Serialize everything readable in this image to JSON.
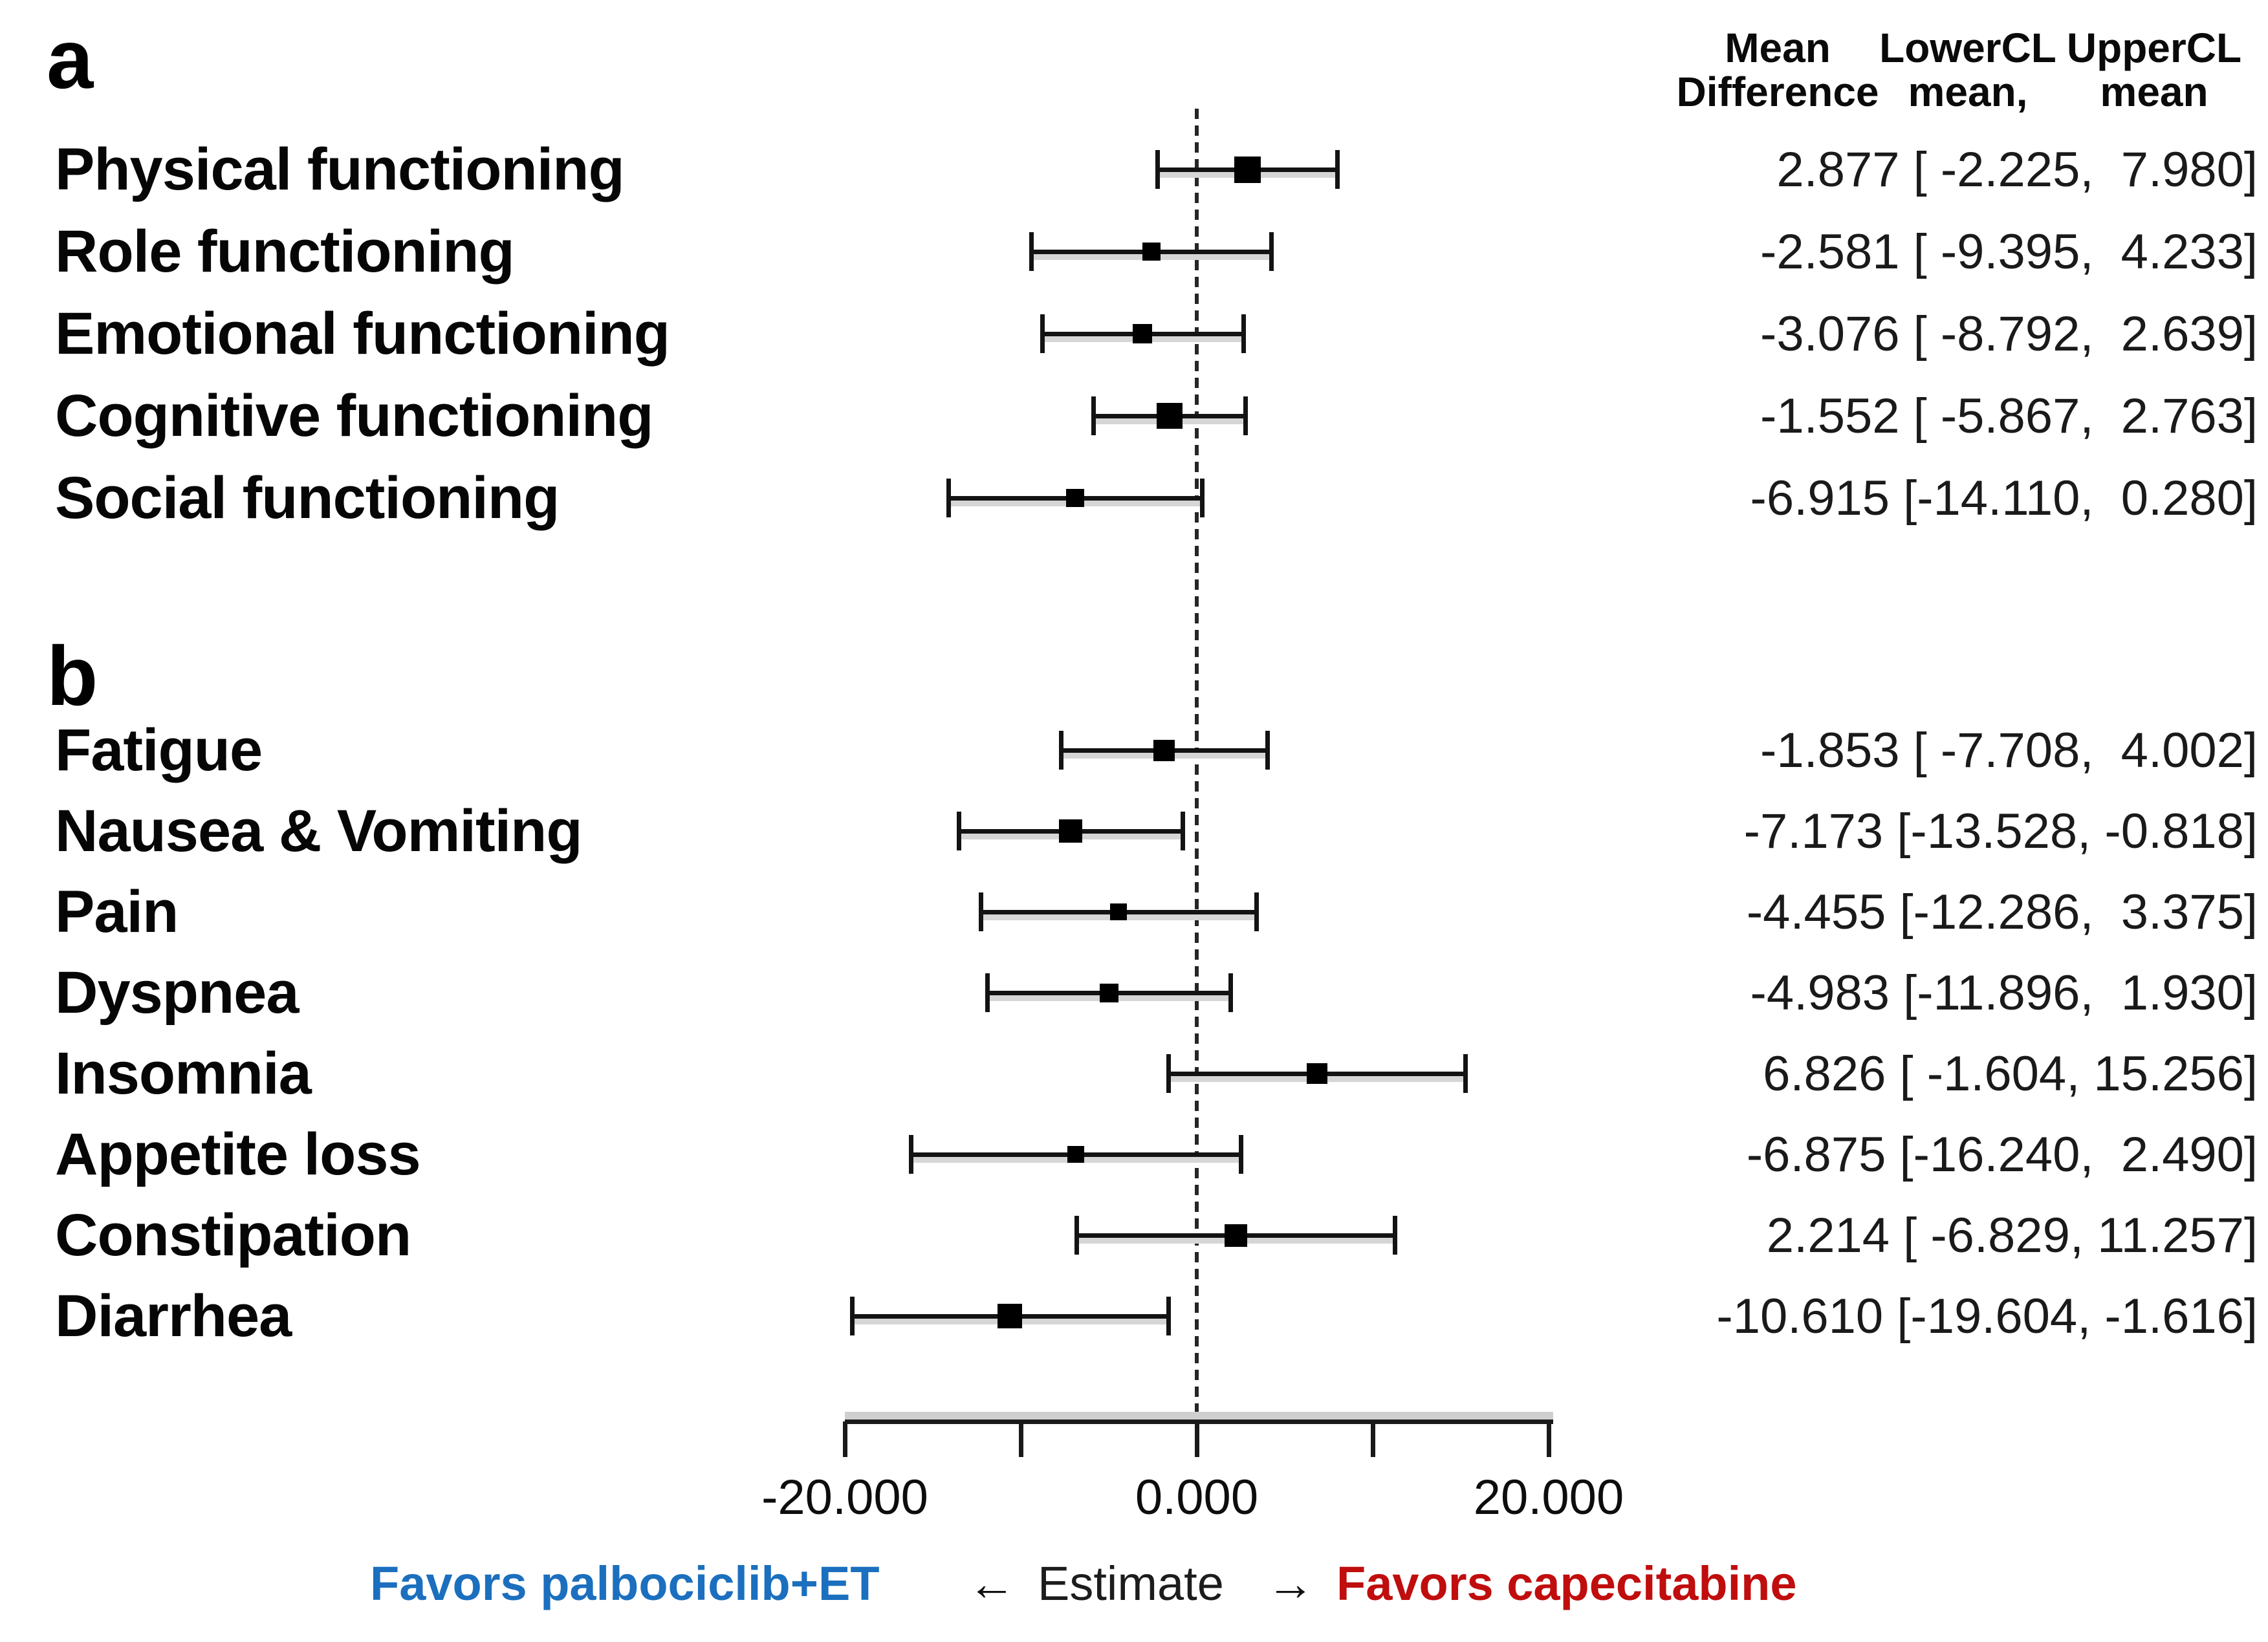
{
  "header": {
    "col1": [
      "Mean",
      "Difference"
    ],
    "col2": [
      "LowerCL",
      "mean,"
    ],
    "col3": [
      "UpperCL",
      "mean"
    ]
  },
  "footer": {
    "favors_left": "Favors palbociclib+ET",
    "arrow_left": "←",
    "center_label": "Estimate",
    "arrow_right": "→",
    "favors_right": "Favors capecitabine",
    "favors_left_color": "#1b6fbe",
    "favors_right_color": "#c00d0d"
  },
  "chart_data": {
    "type": "forest",
    "xlabel": "Estimate",
    "direction_left": "Favors palbociclib+ET",
    "direction_right": "Favors capecitabine",
    "xlim": [
      -20,
      20
    ],
    "zero_reference_line": 0,
    "grid": false,
    "axis_ticks": [
      -20,
      -10,
      0,
      10,
      20
    ],
    "labeled_ticks": [
      {
        "value": -20,
        "label": "-20.000"
      },
      {
        "value": 0,
        "label": "0.000"
      },
      {
        "value": 20,
        "label": "20.000"
      }
    ],
    "value_format": "mean [lower, upper] to 3 decimals",
    "panels": [
      {
        "panel_label": "a",
        "rows": [
          {
            "label": "Physical functioning",
            "mean": 2.877,
            "lower": -2.225,
            "upper": 7.98,
            "weight": 41
          },
          {
            "label": "Role functioning",
            "mean": -2.581,
            "lower": -9.395,
            "upper": 4.233,
            "weight": 28
          },
          {
            "label": "Emotional functioning",
            "mean": -3.076,
            "lower": -8.792,
            "upper": 2.639,
            "weight": 30
          },
          {
            "label": "Cognitive functioning",
            "mean": -1.552,
            "lower": -5.867,
            "upper": 2.763,
            "weight": 40
          },
          {
            "label": "Social functioning",
            "mean": -6.915,
            "lower": -14.11,
            "upper": 0.28,
            "weight": 28
          }
        ]
      },
      {
        "panel_label": "b",
        "rows": [
          {
            "label": "Fatigue",
            "mean": -1.853,
            "lower": -7.708,
            "upper": 4.002,
            "weight": 33
          },
          {
            "label": "Nausea & Vomiting",
            "mean": -7.173,
            "lower": -13.528,
            "upper": -0.818,
            "weight": 36
          },
          {
            "label": "Pain",
            "mean": -4.455,
            "lower": -12.286,
            "upper": 3.375,
            "weight": 26
          },
          {
            "label": "Dyspnea",
            "mean": -4.983,
            "lower": -11.896,
            "upper": 1.93,
            "weight": 29
          },
          {
            "label": "Insomnia",
            "mean": 6.826,
            "lower": -1.604,
            "upper": 15.256,
            "weight": 32
          },
          {
            "label": "Appetite loss",
            "mean": -6.875,
            "lower": -16.24,
            "upper": 2.49,
            "weight": 26
          },
          {
            "label": "Constipation",
            "mean": 2.214,
            "lower": -6.829,
            "upper": 11.257,
            "weight": 35
          },
          {
            "label": "Diarrhea",
            "mean": -10.61,
            "lower": -19.604,
            "upper": -1.616,
            "weight": 38
          }
        ]
      }
    ]
  }
}
